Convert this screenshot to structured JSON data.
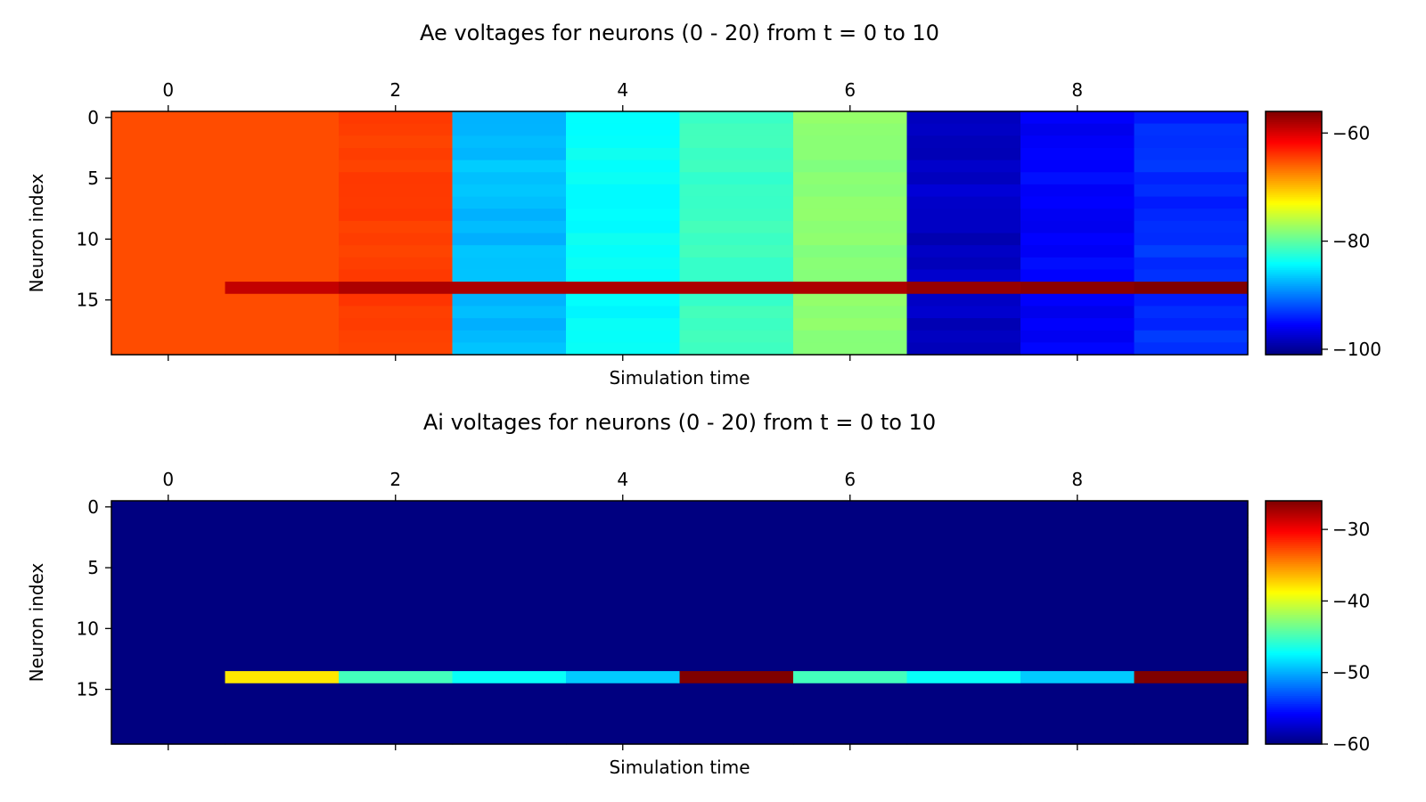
{
  "chart_data": [
    {
      "type": "heatmap",
      "title": "Ae voltages for neurons (0 - 20) from t = 0 to 10",
      "xlabel": "Simulation time",
      "ylabel": "Neuron index",
      "x_ticks": [
        "0",
        "2",
        "4",
        "6",
        "8"
      ],
      "y_ticks": [
        "0",
        "5",
        "10",
        "15"
      ],
      "colorbar_ticks": [
        "−60",
        "−80",
        "−100"
      ],
      "colormap": "jet",
      "colorbar_range": [
        -101,
        -56
      ],
      "x_range": [
        -0.5,
        9.5
      ],
      "y_range": [
        -0.5,
        19.5
      ],
      "n_neurons": 20,
      "times": [
        0,
        1,
        2,
        3,
        4,
        5,
        6,
        7,
        8,
        9
      ],
      "column_values": [
        -65,
        -65,
        -64.3,
        -87,
        -84,
        -81.5,
        -78,
        -98,
        -95.5,
        -93.5
      ],
      "column_variation": [
        0,
        0,
        0.4,
        0.8,
        0.6,
        0.5,
        0.5,
        0.9,
        0.8,
        0.9
      ],
      "highlight_row": {
        "neuron": 14,
        "values": [
          -65,
          -59,
          -58,
          -58,
          -58,
          -58,
          -58,
          -57,
          -56.5,
          -55.5
        ]
      }
    },
    {
      "type": "heatmap",
      "title": "Ai voltages for neurons (0 - 20) from t = 0 to 10",
      "xlabel": "Simulation time",
      "ylabel": "Neuron index",
      "x_ticks": [
        "0",
        "2",
        "4",
        "6",
        "8"
      ],
      "y_ticks": [
        "0",
        "5",
        "10",
        "15"
      ],
      "colorbar_ticks": [
        "−30",
        "−40",
        "−50",
        "−60"
      ],
      "colormap": "jet",
      "colorbar_range": [
        -60,
        -26
      ],
      "x_range": [
        -0.5,
        9.5
      ],
      "y_range": [
        -0.5,
        19.5
      ],
      "n_neurons": 20,
      "times": [
        0,
        1,
        2,
        3,
        4,
        5,
        6,
        7,
        8,
        9
      ],
      "column_values": [
        -60,
        -60,
        -60,
        -60,
        -60,
        -60,
        -60,
        -60,
        -60,
        -60
      ],
      "column_variation": [
        0,
        0,
        0,
        0,
        0,
        0,
        0,
        0,
        0,
        0
      ],
      "highlight_row": {
        "neuron": 14,
        "values": [
          -60,
          -38,
          -45,
          -47,
          -49,
          -26,
          -45,
          -47,
          -49,
          -26
        ]
      }
    }
  ]
}
